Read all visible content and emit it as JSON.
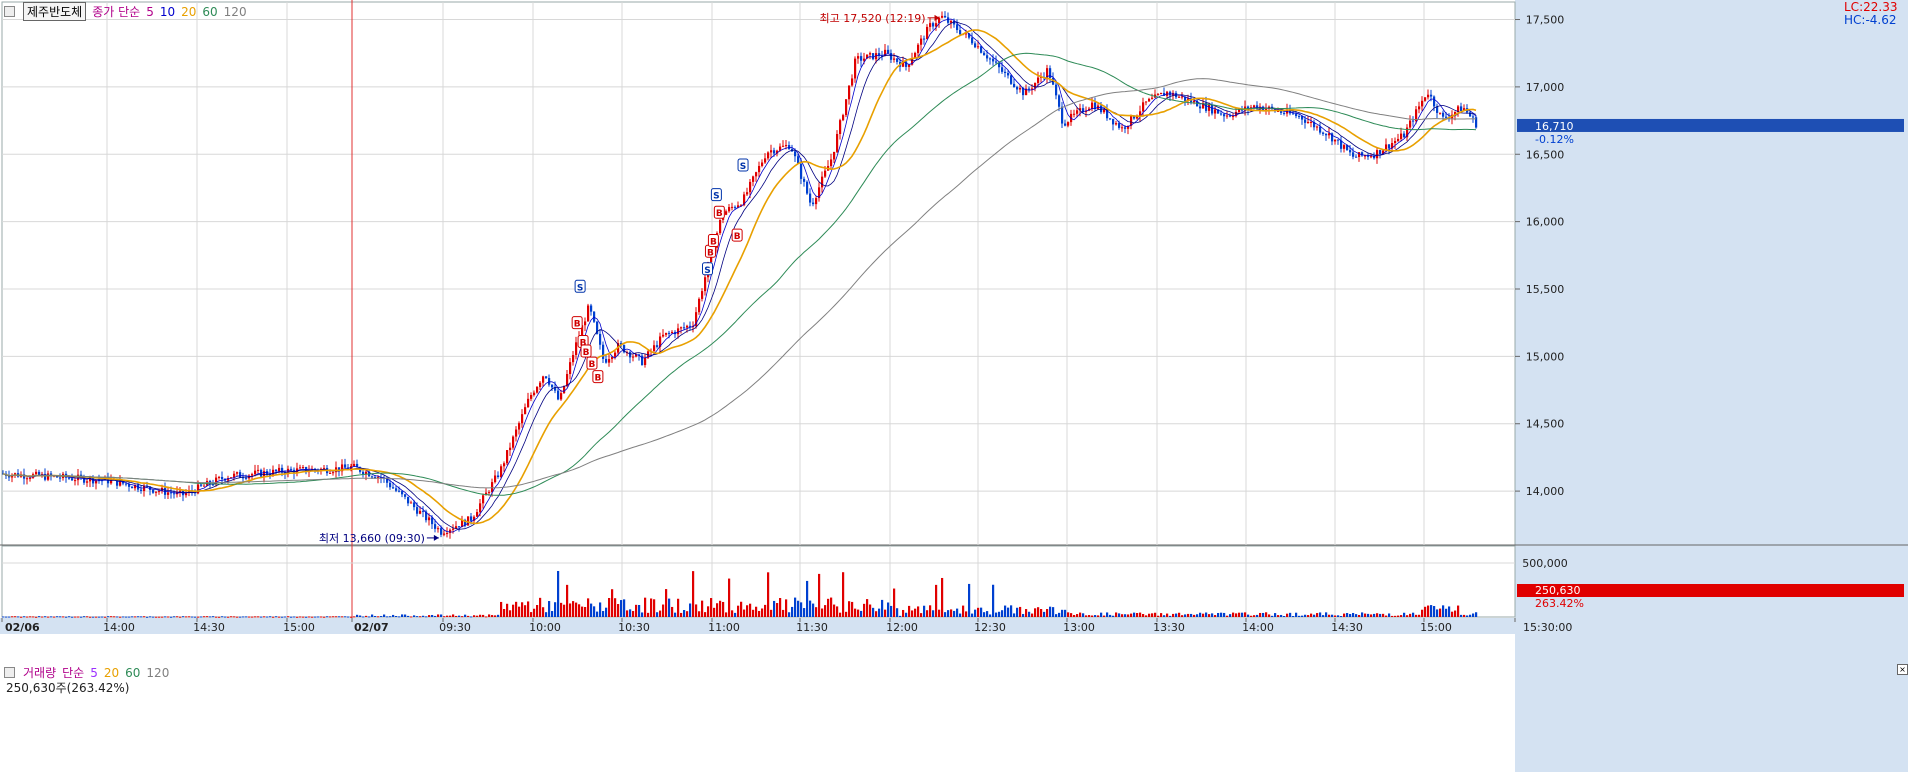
{
  "header": {
    "stock_name": "제주반도체",
    "ma_prefix": "종가 단순",
    "ma_periods": [
      "5",
      "10",
      "20",
      "60",
      "120"
    ],
    "ma_colors": [
      "#0000cc",
      "#0000cc",
      "#e8a000",
      "#2e8b57",
      "#808080"
    ],
    "lc_label": "LC:22.33",
    "hc_label": "HC:-4.62"
  },
  "volume_header": {
    "title": "거래량",
    "ma_prefix": "단순",
    "ma_periods": [
      "5",
      "20",
      "60",
      "120"
    ],
    "ma_colors": [
      "#9b30ff",
      "#e8a000",
      "#2e8b57",
      "#808080"
    ],
    "summary": "250,630주(263.42%)"
  },
  "colors": {
    "up": "#e00000",
    "down": "#0040d0",
    "grid": "#d8d8d8",
    "axis_panel": "#d4e2f2",
    "current_price_bg": "#1e4fb4"
  },
  "chart_data": {
    "type": "candlestick",
    "y_ticks": [
      "14,000",
      "14,500",
      "15,000",
      "15,500",
      "16,000",
      "16,500",
      "17,000",
      "17,500"
    ],
    "ylim": [
      13600,
      17630
    ],
    "x_ticks": [
      "02/06",
      "14:00",
      "14:30",
      "15:00",
      "02/07",
      "09:30",
      "10:00",
      "10:30",
      "11:00",
      "11:30",
      "12:00",
      "12:30",
      "13:00",
      "13:30",
      "14:00",
      "14:30",
      "15:00",
      "15:30:00"
    ],
    "session_break": "02/07",
    "high_label": "최고 17,520 (12:19)",
    "low_label": "최저 13,660 (09:30)",
    "high": {
      "time": "12:19",
      "value": 17520
    },
    "low": {
      "time": "09:30",
      "value": 13660
    },
    "current_price": "16,710",
    "current_change": "-0.12%",
    "price_path": [
      [
        "02/06 13:00",
        14130
      ],
      [
        "02/06 14:00",
        14080
      ],
      [
        "02/06 14:25",
        13970
      ],
      [
        "02/06 14:40",
        14110
      ],
      [
        "02/06 15:00",
        14150
      ],
      [
        "02/06 15:20",
        14170
      ],
      [
        "02/07 09:00",
        14180
      ],
      [
        "02/07 09:10",
        14100
      ],
      [
        "02/07 09:20",
        13900
      ],
      [
        "02/07 09:30",
        13700
      ],
      [
        "02/07 09:40",
        13790
      ],
      [
        "02/07 09:50",
        14150
      ],
      [
        "02/07 10:00",
        14700
      ],
      [
        "02/07 10:05",
        14880
      ],
      [
        "02/07 10:10",
        14660
      ],
      [
        "02/07 10:15",
        15050
      ],
      [
        "02/07 10:20",
        15370
      ],
      [
        "02/07 10:25",
        14960
      ],
      [
        "02/07 10:30",
        15080
      ],
      [
        "02/07 10:38",
        14960
      ],
      [
        "02/07 10:45",
        15150
      ],
      [
        "02/07 10:55",
        15240
      ],
      [
        "02/07 11:00",
        15660
      ],
      [
        "02/07 11:05",
        16060
      ],
      [
        "02/07 11:12",
        16160
      ],
      [
        "02/07 11:20",
        16520
      ],
      [
        "02/07 11:28",
        16570
      ],
      [
        "02/07 11:35",
        16120
      ],
      [
        "02/07 11:42",
        16480
      ],
      [
        "02/07 11:50",
        17200
      ],
      [
        "02/07 12:00",
        17250
      ],
      [
        "02/07 12:07",
        17150
      ],
      [
        "02/07 12:15",
        17450
      ],
      [
        "02/07 12:19",
        17520
      ],
      [
        "02/07 12:30",
        17330
      ],
      [
        "02/07 12:40",
        17100
      ],
      [
        "02/07 12:47",
        16950
      ],
      [
        "02/07 12:55",
        17130
      ],
      [
        "02/07 13:00",
        16730
      ],
      [
        "02/07 13:10",
        16880
      ],
      [
        "02/07 13:20",
        16690
      ],
      [
        "02/07 13:28",
        16880
      ],
      [
        "02/07 13:35",
        16960
      ],
      [
        "02/07 13:45",
        16880
      ],
      [
        "02/07 13:55",
        16790
      ],
      [
        "02/07 14:05",
        16860
      ],
      [
        "02/07 14:20",
        16780
      ],
      [
        "02/07 14:30",
        16640
      ],
      [
        "02/07 14:38",
        16480
      ],
      [
        "02/07 14:45",
        16500
      ],
      [
        "02/07 14:55",
        16640
      ],
      [
        "02/07 15:03",
        16970
      ],
      [
        "02/07 15:08",
        16760
      ],
      [
        "02/07 15:15",
        16850
      ],
      [
        "02/07 15:20",
        16710
      ]
    ],
    "volume_ticks": [
      "500,000"
    ],
    "volume_last": "250,630",
    "volume_last_pct": "263.42%",
    "signals": [
      {
        "label": "S",
        "time": "10:17",
        "value": 15520
      },
      {
        "label": "B",
        "time": "10:16",
        "value": 15250
      },
      {
        "label": "B",
        "time": "10:18",
        "value": 15110
      },
      {
        "label": "B",
        "time": "10:19",
        "value": 15040
      },
      {
        "label": "B",
        "time": "10:21",
        "value": 14950
      },
      {
        "label": "B",
        "time": "10:23",
        "value": 14850
      },
      {
        "label": "S",
        "time": "11:00",
        "value": 15650
      },
      {
        "label": "B",
        "time": "11:01",
        "value": 15780
      },
      {
        "label": "B",
        "time": "11:02",
        "value": 15860
      },
      {
        "label": "S",
        "time": "11:03",
        "value": 16200
      },
      {
        "label": "B",
        "time": "11:04",
        "value": 16070
      },
      {
        "label": "B",
        "time": "11:10",
        "value": 15900
      },
      {
        "label": "S",
        "time": "11:12",
        "value": 16420
      }
    ]
  }
}
